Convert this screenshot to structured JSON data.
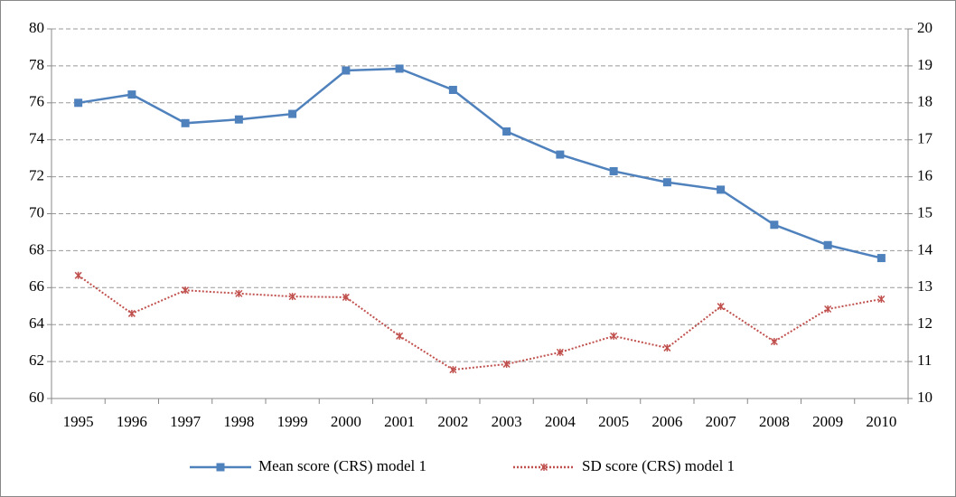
{
  "chart_data": {
    "type": "line",
    "categories": [
      "1995",
      "1996",
      "1997",
      "1998",
      "1999",
      "2000",
      "2001",
      "2002",
      "2003",
      "2004",
      "2005",
      "2006",
      "2007",
      "2008",
      "2009",
      "2010"
    ],
    "series": [
      {
        "name": "Mean score (CRS) model 1",
        "color": "#4f81bd",
        "marker": "square",
        "dash": "solid",
        "values": [
          76.0,
          76.45,
          74.9,
          75.1,
          75.4,
          77.75,
          77.85,
          76.7,
          74.45,
          73.2,
          72.3,
          71.7,
          71.3,
          69.4,
          68.3,
          67.6
        ]
      },
      {
        "name": "SD score (CRS) model 1",
        "color": "#c0504d",
        "marker": "star",
        "dash": "dotted",
        "axis": "y2",
        "values": [
          13.33,
          12.3,
          12.93,
          12.84,
          12.76,
          12.74,
          11.69,
          10.78,
          10.93,
          11.25,
          11.69,
          11.37,
          12.49,
          11.54,
          12.42,
          12.69
        ]
      }
    ],
    "ylim": [
      60,
      80
    ],
    "yticks": [
      60,
      62,
      64,
      66,
      68,
      70,
      72,
      74,
      76,
      78,
      80
    ],
    "y2lim": [
      10,
      20
    ],
    "y2ticks": [
      10,
      11,
      12,
      13,
      14,
      15,
      16,
      17,
      18,
      19,
      20
    ],
    "grid": true,
    "legend": "bottom"
  }
}
